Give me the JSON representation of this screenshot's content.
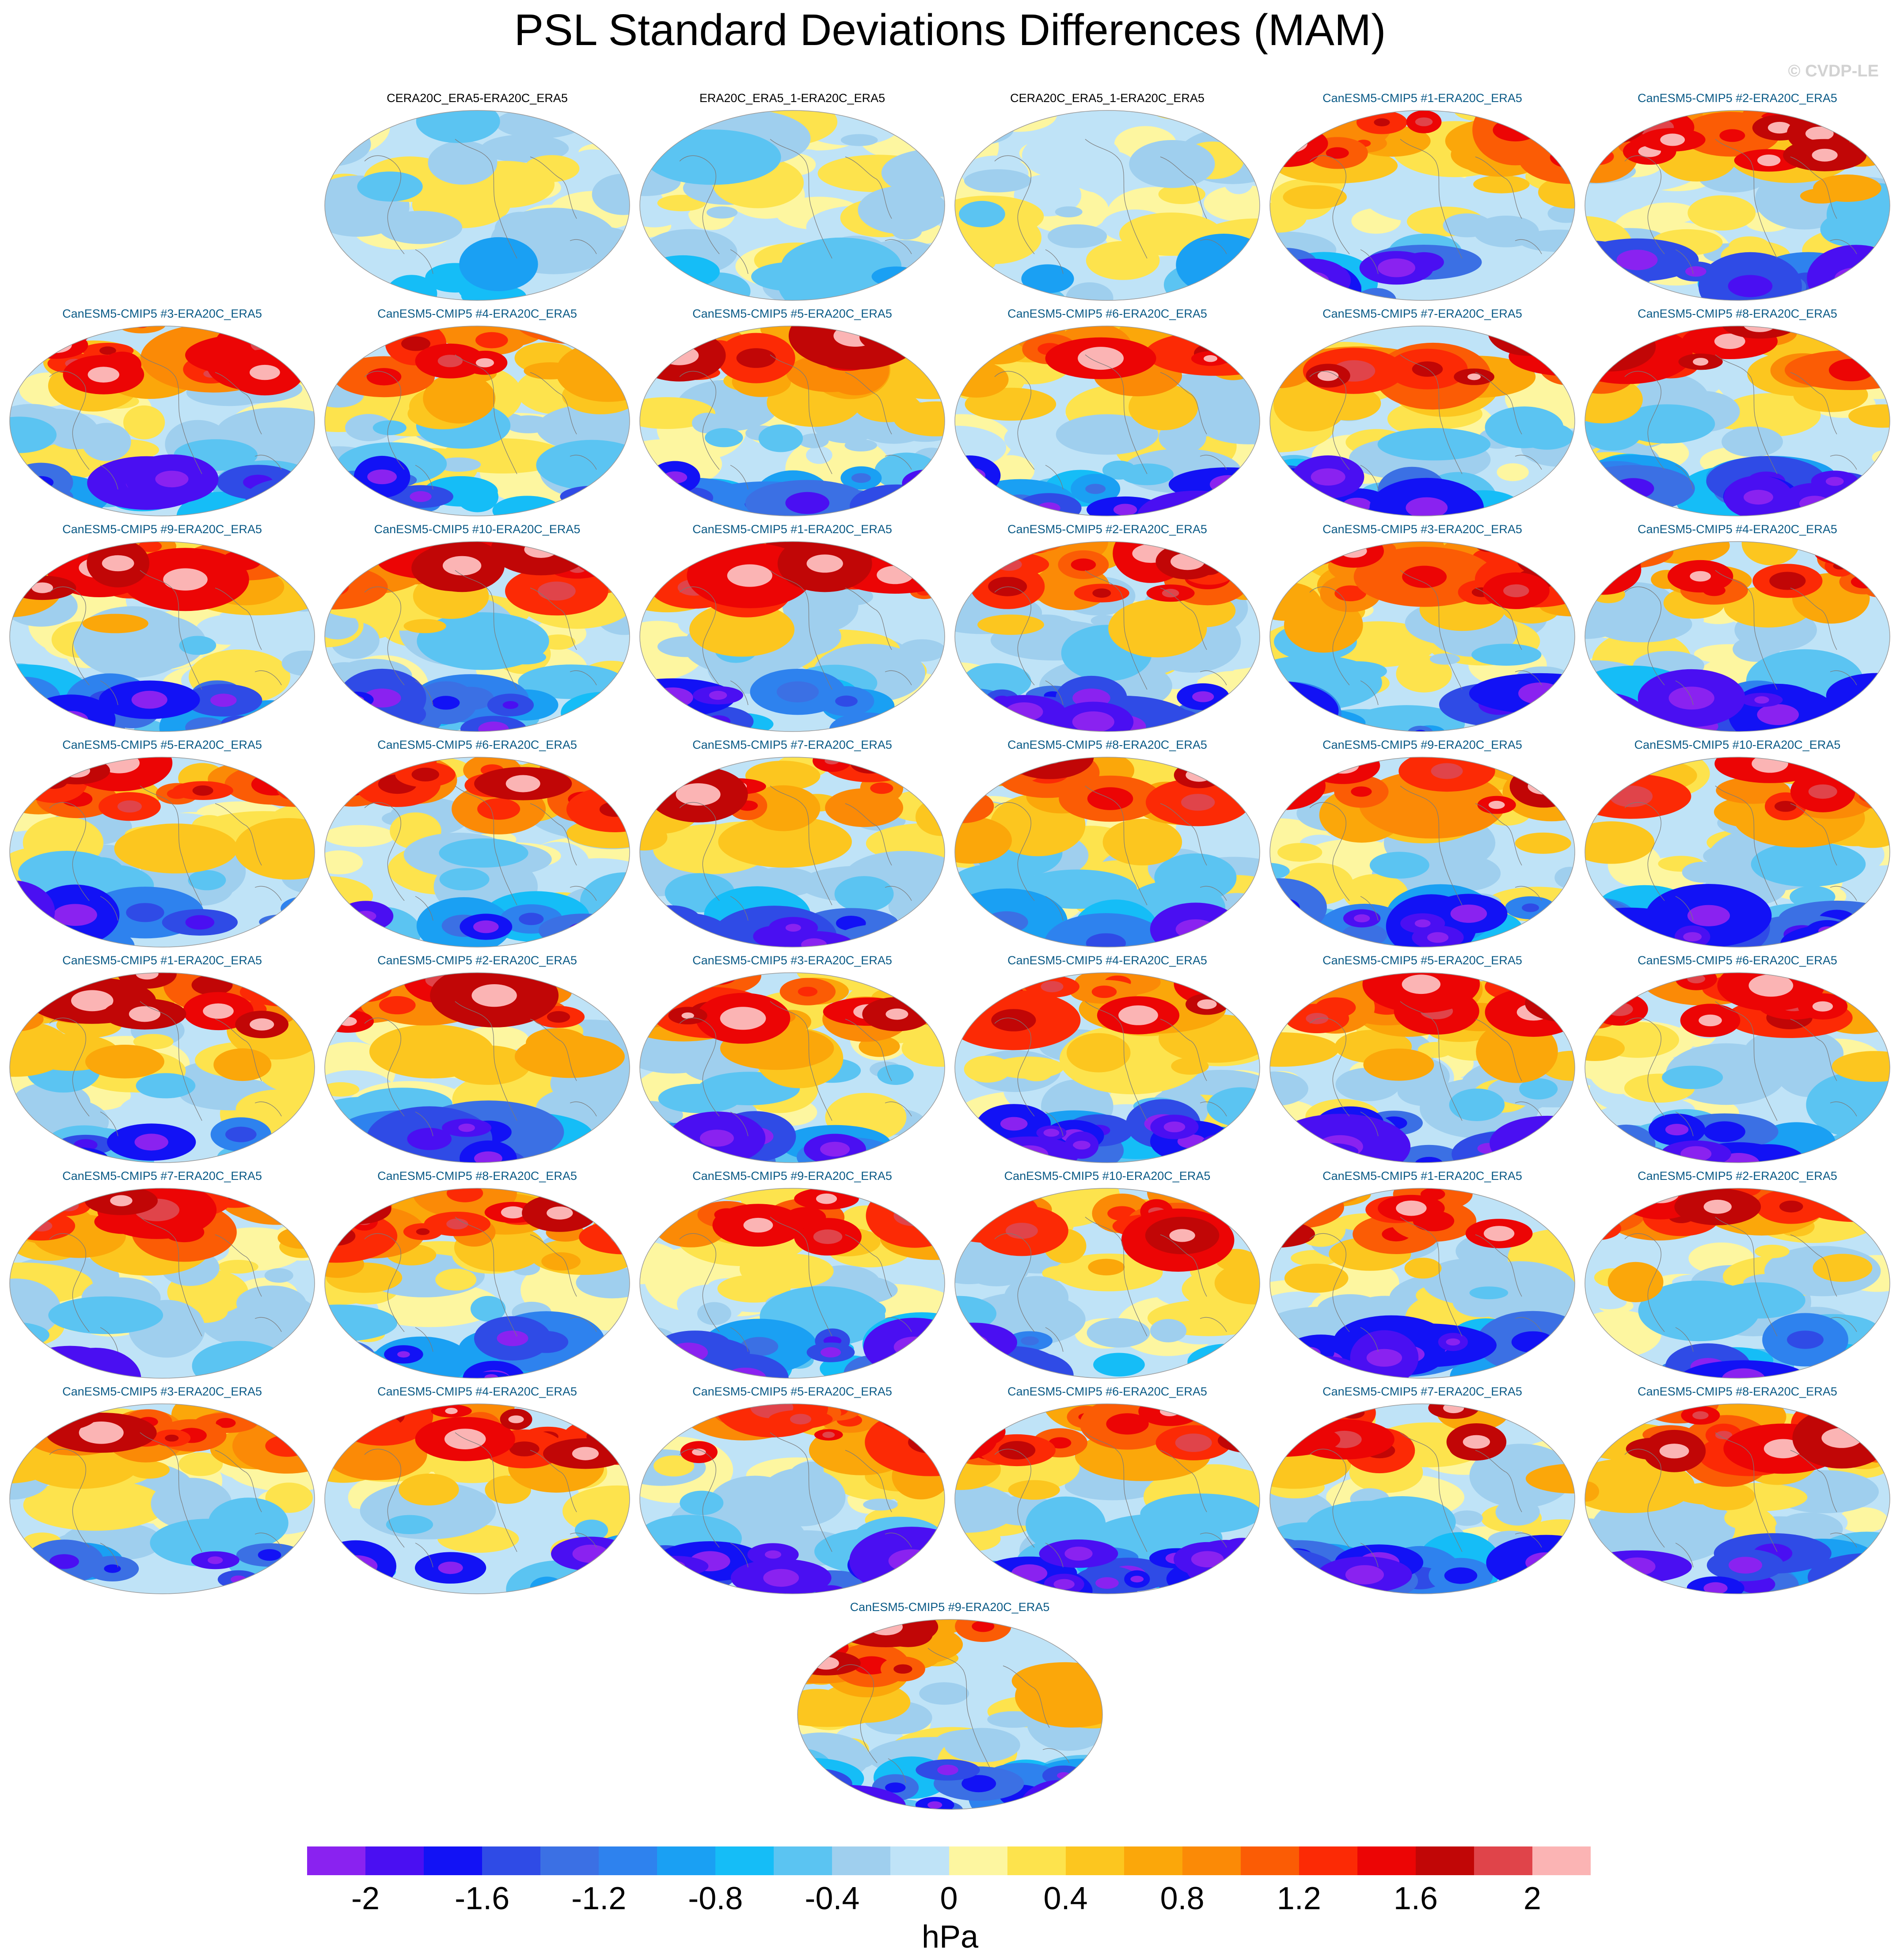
{
  "title": "PSL Standard Deviations Differences (MAM)",
  "credit": "© CVDP-LE",
  "chart_data": {
    "type": "heatmap",
    "projection": "Robinson (global maps)",
    "variable": "PSL standard deviation difference",
    "season": "MAM",
    "units": "hPa",
    "colorbar": {
      "levels": [
        -2.2,
        -2,
        -1.8,
        -1.6,
        -1.4,
        -1.2,
        -1,
        -0.8,
        -0.6,
        -0.4,
        -0.2,
        0,
        0.2,
        0.4,
        0.6,
        0.8,
        1,
        1.2,
        1.4,
        1.6,
        1.8,
        2,
        2.2
      ],
      "tick_values": [
        -2,
        -1.6,
        -1.2,
        -0.8,
        -0.4,
        0,
        0.4,
        0.8,
        1.2,
        1.6,
        2
      ],
      "tick_labels": [
        "-2",
        "-1.6",
        "-1.2",
        "-0.8",
        "-0.4",
        "0",
        "0.4",
        "0.8",
        "1.2",
        "1.6",
        "2"
      ],
      "colors": [
        "#8a22f0",
        "#4a0ff2",
        "#1212f5",
        "#2f4be6",
        "#3b70e4",
        "#2e82ee",
        "#1aa0f3",
        "#15bdf7",
        "#5bc4f2",
        "#9fcfee",
        "#bfe3f7",
        "#fdf6a0",
        "#fde34d",
        "#fcc61f",
        "#fba70a",
        "#fb8a06",
        "#fb5c05",
        "#fc2a05",
        "#ec0505",
        "#c10606",
        "#e0444a",
        "#fbb4b4"
      ]
    },
    "panels": [
      {
        "title": "CERA20C_ERA5-ERA20C_ERA5",
        "kind": "obs",
        "row": 0,
        "col": 1
      },
      {
        "title": "ERA20C_ERA5_1-ERA20C_ERA5",
        "kind": "obs",
        "row": 0,
        "col": 2
      },
      {
        "title": "CERA20C_ERA5_1-ERA20C_ERA5",
        "kind": "obs",
        "row": 0,
        "col": 3
      },
      {
        "title": "CanESM5-CMIP5 #1-ERA20C_ERA5",
        "kind": "model",
        "row": 0,
        "col": 4
      },
      {
        "title": "CanESM5-CMIP5 #2-ERA20C_ERA5",
        "kind": "model",
        "row": 0,
        "col": 5
      },
      {
        "title": "CanESM5-CMIP5 #3-ERA20C_ERA5",
        "kind": "model",
        "row": 1,
        "col": 0
      },
      {
        "title": "CanESM5-CMIP5 #4-ERA20C_ERA5",
        "kind": "model",
        "row": 1,
        "col": 1
      },
      {
        "title": "CanESM5-CMIP5 #5-ERA20C_ERA5",
        "kind": "model",
        "row": 1,
        "col": 2
      },
      {
        "title": "CanESM5-CMIP5 #6-ERA20C_ERA5",
        "kind": "model",
        "row": 1,
        "col": 3
      },
      {
        "title": "CanESM5-CMIP5 #7-ERA20C_ERA5",
        "kind": "model",
        "row": 1,
        "col": 4
      },
      {
        "title": "CanESM5-CMIP5 #8-ERA20C_ERA5",
        "kind": "model",
        "row": 1,
        "col": 5
      },
      {
        "title": "CanESM5-CMIP5 #9-ERA20C_ERA5",
        "kind": "model",
        "row": 2,
        "col": 0
      },
      {
        "title": "CanESM5-CMIP5 #10-ERA20C_ERA5",
        "kind": "model",
        "row": 2,
        "col": 1
      },
      {
        "title": "CanESM5-CMIP5 #1-ERA20C_ERA5",
        "kind": "model",
        "row": 2,
        "col": 2
      },
      {
        "title": "CanESM5-CMIP5 #2-ERA20C_ERA5",
        "kind": "model",
        "row": 2,
        "col": 3
      },
      {
        "title": "CanESM5-CMIP5 #3-ERA20C_ERA5",
        "kind": "model",
        "row": 2,
        "col": 4
      },
      {
        "title": "CanESM5-CMIP5 #4-ERA20C_ERA5",
        "kind": "model",
        "row": 2,
        "col": 5
      },
      {
        "title": "CanESM5-CMIP5 #5-ERA20C_ERA5",
        "kind": "model",
        "row": 3,
        "col": 0
      },
      {
        "title": "CanESM5-CMIP5 #6-ERA20C_ERA5",
        "kind": "model",
        "row": 3,
        "col": 1
      },
      {
        "title": "CanESM5-CMIP5 #7-ERA20C_ERA5",
        "kind": "model",
        "row": 3,
        "col": 2
      },
      {
        "title": "CanESM5-CMIP5 #8-ERA20C_ERA5",
        "kind": "model",
        "row": 3,
        "col": 3
      },
      {
        "title": "CanESM5-CMIP5 #9-ERA20C_ERA5",
        "kind": "model",
        "row": 3,
        "col": 4
      },
      {
        "title": "CanESM5-CMIP5 #10-ERA20C_ERA5",
        "kind": "model",
        "row": 3,
        "col": 5
      },
      {
        "title": "CanESM5-CMIP5 #1-ERA20C_ERA5",
        "kind": "model",
        "row": 4,
        "col": 0
      },
      {
        "title": "CanESM5-CMIP5 #2-ERA20C_ERA5",
        "kind": "model",
        "row": 4,
        "col": 1
      },
      {
        "title": "CanESM5-CMIP5 #3-ERA20C_ERA5",
        "kind": "model",
        "row": 4,
        "col": 2
      },
      {
        "title": "CanESM5-CMIP5 #4-ERA20C_ERA5",
        "kind": "model",
        "row": 4,
        "col": 3
      },
      {
        "title": "CanESM5-CMIP5 #5-ERA20C_ERA5",
        "kind": "model",
        "row": 4,
        "col": 4
      },
      {
        "title": "CanESM5-CMIP5 #6-ERA20C_ERA5",
        "kind": "model",
        "row": 4,
        "col": 5
      },
      {
        "title": "CanESM5-CMIP5 #7-ERA20C_ERA5",
        "kind": "model",
        "row": 5,
        "col": 0
      },
      {
        "title": "CanESM5-CMIP5 #8-ERA20C_ERA5",
        "kind": "model",
        "row": 5,
        "col": 1
      },
      {
        "title": "CanESM5-CMIP5 #9-ERA20C_ERA5",
        "kind": "model",
        "row": 5,
        "col": 2
      },
      {
        "title": "CanESM5-CMIP5 #10-ERA20C_ERA5",
        "kind": "model",
        "row": 5,
        "col": 3
      },
      {
        "title": "CanESM5-CMIP5 #1-ERA20C_ERA5",
        "kind": "model",
        "row": 5,
        "col": 4
      },
      {
        "title": "CanESM5-CMIP5 #2-ERA20C_ERA5",
        "kind": "model",
        "row": 5,
        "col": 5
      },
      {
        "title": "CanESM5-CMIP5 #3-ERA20C_ERA5",
        "kind": "model",
        "row": 6,
        "col": 0
      },
      {
        "title": "CanESM5-CMIP5 #4-ERA20C_ERA5",
        "kind": "model",
        "row": 6,
        "col": 1
      },
      {
        "title": "CanESM5-CMIP5 #5-ERA20C_ERA5",
        "kind": "model",
        "row": 6,
        "col": 2
      },
      {
        "title": "CanESM5-CMIP5 #6-ERA20C_ERA5",
        "kind": "model",
        "row": 6,
        "col": 3
      },
      {
        "title": "CanESM5-CMIP5 #7-ERA20C_ERA5",
        "kind": "model",
        "row": 6,
        "col": 4
      },
      {
        "title": "CanESM5-CMIP5 #8-ERA20C_ERA5",
        "kind": "model",
        "row": 6,
        "col": 5
      },
      {
        "title": "CanESM5-CMIP5 #9-ERA20C_ERA5",
        "kind": "model",
        "row": 7,
        "col": 2.5
      }
    ]
  }
}
